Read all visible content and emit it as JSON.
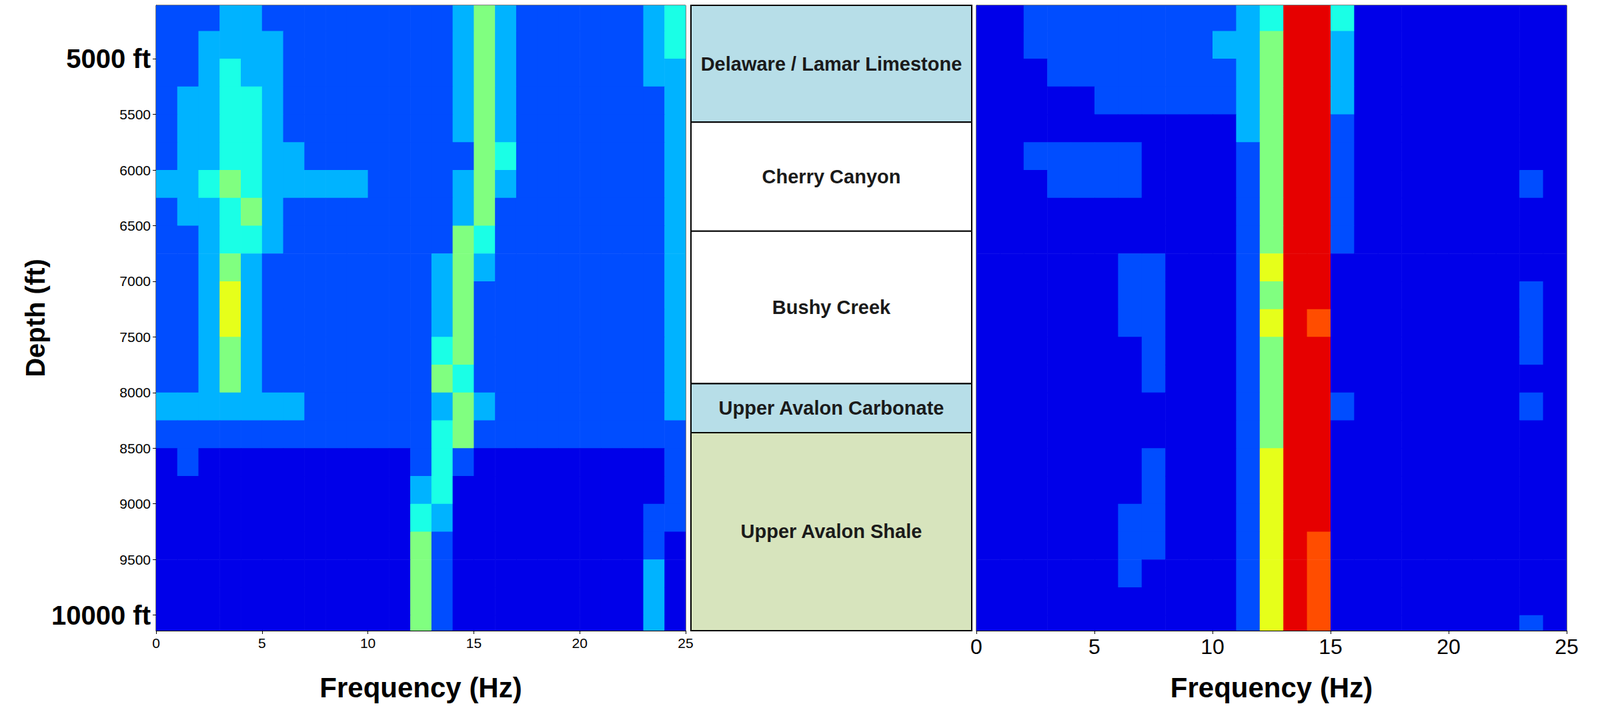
{
  "chart_data": [
    {
      "type": "heatmap",
      "x_label": "Frequency (Hz)",
      "y_label": "Depth (ft)",
      "xlim": [
        0,
        25
      ],
      "xticks": [
        0,
        5,
        10,
        15,
        20,
        25
      ],
      "ylim": [
        4520,
        10140
      ],
      "yticks": [
        {
          "value": 5000,
          "label": "5000 ft"
        },
        5500,
        6000,
        6500,
        7000,
        7500,
        8000,
        8500,
        9000,
        9500,
        {
          "value": 10000,
          "label": "10000 ft"
        }
      ],
      "zlim": [
        0,
        10
      ],
      "x_edges": [
        0,
        1,
        2,
        3,
        4,
        5,
        6,
        7,
        8,
        9,
        10,
        11,
        12,
        13,
        14,
        15,
        16,
        17,
        18,
        19,
        20,
        21,
        22,
        23,
        24,
        25
      ],
      "y_edges": [
        4520,
        4750,
        5000,
        5250,
        5500,
        5750,
        6000,
        6250,
        6500,
        6750,
        7000,
        7250,
        7500,
        7750,
        8000,
        8250,
        8500,
        8750,
        9000,
        9250,
        9500,
        9750,
        10000,
        10140
      ],
      "z": [
        [
          2,
          2,
          2,
          3,
          3,
          2,
          2,
          2,
          2,
          2,
          2,
          2,
          2,
          2,
          3,
          5,
          3,
          2,
          2,
          2,
          2,
          2,
          2,
          3,
          4
        ],
        [
          2,
          2,
          3,
          3,
          3,
          3,
          2,
          2,
          2,
          2,
          2,
          2,
          2,
          2,
          3,
          5,
          3,
          2,
          2,
          2,
          2,
          2,
          2,
          3,
          4
        ],
        [
          2,
          2,
          3,
          4,
          3,
          3,
          2,
          2,
          2,
          2,
          2,
          2,
          2,
          2,
          3,
          5,
          3,
          2,
          2,
          2,
          2,
          2,
          2,
          3,
          3
        ],
        [
          2,
          3,
          3,
          4,
          4,
          3,
          2,
          2,
          2,
          2,
          2,
          2,
          2,
          2,
          3,
          5,
          3,
          2,
          2,
          2,
          2,
          2,
          2,
          2,
          3
        ],
        [
          2,
          3,
          3,
          4,
          4,
          3,
          2,
          2,
          2,
          2,
          2,
          2,
          2,
          2,
          3,
          5,
          3,
          2,
          2,
          2,
          2,
          2,
          2,
          2,
          3
        ],
        [
          2,
          3,
          3,
          4,
          4,
          3,
          3,
          2,
          2,
          2,
          2,
          2,
          2,
          2,
          2,
          5,
          4,
          2,
          2,
          2,
          2,
          2,
          2,
          2,
          3
        ],
        [
          3,
          3,
          4,
          5,
          4,
          3,
          3,
          3,
          3,
          3,
          2,
          2,
          2,
          2,
          3,
          5,
          3,
          2,
          2,
          2,
          2,
          2,
          2,
          2,
          3
        ],
        [
          2,
          3,
          3,
          4,
          5,
          3,
          2,
          2,
          2,
          2,
          2,
          2,
          2,
          2,
          3,
          5,
          2,
          2,
          2,
          2,
          2,
          2,
          2,
          2,
          3
        ],
        [
          2,
          2,
          3,
          4,
          4,
          3,
          2,
          2,
          2,
          2,
          2,
          2,
          2,
          2,
          5,
          4,
          2,
          2,
          2,
          2,
          2,
          2,
          2,
          2,
          3
        ],
        [
          2,
          2,
          3,
          5,
          3,
          2,
          2,
          2,
          2,
          2,
          2,
          2,
          2,
          3,
          5,
          3,
          2,
          2,
          2,
          2,
          2,
          2,
          2,
          2,
          3
        ],
        [
          2,
          2,
          3,
          6,
          3,
          2,
          2,
          2,
          2,
          2,
          2,
          2,
          2,
          3,
          5,
          2,
          2,
          2,
          2,
          2,
          2,
          2,
          2,
          2,
          3
        ],
        [
          2,
          2,
          3,
          6,
          3,
          2,
          2,
          2,
          2,
          2,
          2,
          2,
          2,
          3,
          5,
          2,
          2,
          2,
          2,
          2,
          2,
          2,
          2,
          2,
          3
        ],
        [
          2,
          2,
          3,
          5,
          3,
          2,
          2,
          2,
          2,
          2,
          2,
          2,
          2,
          4,
          5,
          2,
          2,
          2,
          2,
          2,
          2,
          2,
          2,
          2,
          3
        ],
        [
          2,
          2,
          3,
          5,
          3,
          2,
          2,
          2,
          2,
          2,
          2,
          2,
          2,
          5,
          4,
          2,
          2,
          2,
          2,
          2,
          2,
          2,
          2,
          2,
          3
        ],
        [
          3,
          3,
          3,
          3,
          3,
          3,
          3,
          2,
          2,
          2,
          2,
          2,
          2,
          3,
          5,
          3,
          2,
          2,
          2,
          2,
          2,
          2,
          2,
          2,
          3
        ],
        [
          2,
          2,
          2,
          2,
          2,
          2,
          2,
          2,
          2,
          2,
          2,
          2,
          2,
          4,
          5,
          2,
          2,
          2,
          2,
          2,
          2,
          2,
          2,
          2,
          2
        ],
        [
          1,
          2,
          1,
          1,
          1,
          1,
          1,
          1,
          1,
          1,
          1,
          1,
          2,
          4,
          2,
          1,
          1,
          1,
          1,
          1,
          1,
          1,
          1,
          1,
          2
        ],
        [
          1,
          1,
          1,
          1,
          1,
          1,
          1,
          1,
          1,
          1,
          1,
          1,
          3,
          4,
          1,
          1,
          1,
          1,
          1,
          1,
          1,
          1,
          1,
          1,
          2
        ],
        [
          1,
          1,
          1,
          1,
          1,
          1,
          1,
          1,
          1,
          1,
          1,
          1,
          4,
          3,
          1,
          1,
          1,
          1,
          1,
          1,
          1,
          1,
          1,
          2,
          2
        ],
        [
          1,
          1,
          1,
          1,
          1,
          1,
          1,
          1,
          1,
          1,
          1,
          1,
          5,
          2,
          1,
          1,
          1,
          1,
          1,
          1,
          1,
          1,
          1,
          2,
          1
        ],
        [
          1,
          1,
          1,
          1,
          1,
          1,
          1,
          1,
          1,
          1,
          1,
          1,
          5,
          2,
          1,
          1,
          1,
          1,
          1,
          1,
          1,
          1,
          1,
          3,
          1
        ],
        [
          1,
          1,
          1,
          1,
          1,
          1,
          1,
          1,
          1,
          1,
          1,
          1,
          5,
          2,
          1,
          1,
          1,
          1,
          1,
          1,
          1,
          1,
          1,
          3,
          1
        ],
        [
          1,
          1,
          1,
          1,
          1,
          1,
          1,
          1,
          1,
          1,
          1,
          1,
          5,
          2,
          1,
          1,
          1,
          1,
          1,
          1,
          1,
          1,
          1,
          3,
          1
        ]
      ]
    },
    {
      "type": "strata",
      "tick_labels": false,
      "ylim": [
        4520,
        10140
      ],
      "formations": [
        {
          "name": "Delaware / Lamar Limestone",
          "top": 4520,
          "bottom": 5570,
          "color": "#b7dee8"
        },
        {
          "name": "Cherry Canyon",
          "top": 5570,
          "bottom": 6550,
          "color": "#ffffff"
        },
        {
          "name": "Bushy Creek",
          "top": 6550,
          "bottom": 7920,
          "color": "#ffffff"
        },
        {
          "name": "Upper Avalon Carbonate",
          "top": 7920,
          "bottom": 8360,
          "color": "#b7dee8"
        },
        {
          "name": "Upper Avalon Shale",
          "top": 8360,
          "bottom": 10140,
          "color": "#d7e4bd"
        }
      ]
    },
    {
      "type": "heatmap",
      "x_label": "Frequency (Hz)",
      "tick_labels": "x",
      "xlim": [
        0,
        25
      ],
      "xticks": [
        0,
        5,
        10,
        15,
        20,
        25
      ],
      "ylim": [
        4520,
        10140
      ],
      "zlim": [
        0,
        10
      ],
      "x_edges": [
        0,
        1,
        2,
        3,
        4,
        5,
        6,
        7,
        8,
        9,
        10,
        11,
        12,
        13,
        14,
        15,
        16,
        17,
        18,
        19,
        20,
        21,
        22,
        23,
        24,
        25
      ],
      "y_edges": [
        4520,
        4750,
        5000,
        5250,
        5500,
        5750,
        6000,
        6250,
        6500,
        6750,
        7000,
        7250,
        7500,
        7750,
        8000,
        8250,
        8500,
        8750,
        9000,
        9250,
        9500,
        9750,
        10000,
        10140
      ],
      "z": [
        [
          1,
          1,
          2,
          2,
          2,
          2,
          2,
          2,
          2,
          2,
          2,
          3,
          4,
          9,
          9,
          4,
          1,
          1,
          1,
          1,
          1,
          1,
          1,
          1,
          1
        ],
        [
          1,
          1,
          2,
          2,
          2,
          2,
          2,
          2,
          2,
          2,
          3,
          3,
          5,
          9,
          9,
          3,
          1,
          1,
          1,
          1,
          1,
          1,
          1,
          1,
          1
        ],
        [
          1,
          1,
          1,
          2,
          2,
          2,
          2,
          2,
          2,
          2,
          2,
          3,
          5,
          9,
          9,
          3,
          1,
          1,
          1,
          1,
          1,
          1,
          1,
          1,
          1
        ],
        [
          1,
          1,
          1,
          1,
          1,
          2,
          2,
          2,
          2,
          2,
          2,
          3,
          5,
          9,
          9,
          3,
          1,
          1,
          1,
          1,
          1,
          1,
          1,
          1,
          1
        ],
        [
          1,
          1,
          1,
          1,
          1,
          1,
          1,
          1,
          1,
          1,
          1,
          3,
          5,
          9,
          9,
          2,
          1,
          1,
          1,
          1,
          1,
          1,
          1,
          1,
          1
        ],
        [
          1,
          1,
          2,
          2,
          2,
          2,
          2,
          1,
          1,
          1,
          1,
          2,
          5,
          9,
          9,
          2,
          1,
          1,
          1,
          1,
          1,
          1,
          1,
          1,
          1
        ],
        [
          1,
          1,
          1,
          2,
          2,
          2,
          2,
          1,
          1,
          1,
          1,
          2,
          5,
          9,
          9,
          2,
          1,
          1,
          1,
          1,
          1,
          1,
          1,
          2,
          1
        ],
        [
          1,
          1,
          1,
          1,
          1,
          1,
          1,
          1,
          1,
          1,
          1,
          2,
          5,
          9,
          9,
          2,
          1,
          1,
          1,
          1,
          1,
          1,
          1,
          1,
          1
        ],
        [
          1,
          1,
          1,
          1,
          1,
          1,
          1,
          1,
          1,
          1,
          1,
          2,
          5,
          9,
          9,
          2,
          1,
          1,
          1,
          1,
          1,
          1,
          1,
          1,
          1
        ],
        [
          1,
          1,
          1,
          1,
          1,
          1,
          2,
          2,
          1,
          1,
          1,
          2,
          6,
          9,
          9,
          1,
          1,
          1,
          1,
          1,
          1,
          1,
          1,
          1,
          1
        ],
        [
          1,
          1,
          1,
          1,
          1,
          1,
          2,
          2,
          1,
          1,
          1,
          2,
          5,
          9,
          9,
          1,
          1,
          1,
          1,
          1,
          1,
          1,
          1,
          2,
          1
        ],
        [
          1,
          1,
          1,
          1,
          1,
          1,
          2,
          2,
          1,
          1,
          1,
          2,
          6,
          9,
          8,
          1,
          1,
          1,
          1,
          1,
          1,
          1,
          1,
          2,
          1
        ],
        [
          1,
          1,
          1,
          1,
          1,
          1,
          1,
          2,
          1,
          1,
          1,
          2,
          5,
          9,
          9,
          1,
          1,
          1,
          1,
          1,
          1,
          1,
          1,
          2,
          1
        ],
        [
          1,
          1,
          1,
          1,
          1,
          1,
          1,
          2,
          1,
          1,
          1,
          2,
          5,
          9,
          9,
          1,
          1,
          1,
          1,
          1,
          1,
          1,
          1,
          1,
          1
        ],
        [
          1,
          1,
          1,
          1,
          1,
          1,
          1,
          1,
          1,
          1,
          1,
          2,
          5,
          9,
          9,
          2,
          1,
          1,
          1,
          1,
          1,
          1,
          1,
          2,
          1
        ],
        [
          1,
          1,
          1,
          1,
          1,
          1,
          1,
          1,
          1,
          1,
          1,
          2,
          5,
          9,
          9,
          1,
          1,
          1,
          1,
          1,
          1,
          1,
          1,
          1,
          1
        ],
        [
          1,
          1,
          1,
          1,
          1,
          1,
          1,
          2,
          1,
          1,
          1,
          2,
          6,
          9,
          9,
          1,
          1,
          1,
          1,
          1,
          1,
          1,
          1,
          1,
          1
        ],
        [
          1,
          1,
          1,
          1,
          1,
          1,
          1,
          2,
          1,
          1,
          1,
          2,
          6,
          9,
          9,
          1,
          1,
          1,
          1,
          1,
          1,
          1,
          1,
          1,
          1
        ],
        [
          1,
          1,
          1,
          1,
          1,
          1,
          2,
          2,
          1,
          1,
          1,
          2,
          6,
          9,
          9,
          1,
          1,
          1,
          1,
          1,
          1,
          1,
          1,
          1,
          1
        ],
        [
          1,
          1,
          1,
          1,
          1,
          1,
          2,
          2,
          1,
          1,
          1,
          2,
          6,
          9,
          8,
          1,
          1,
          1,
          1,
          1,
          1,
          1,
          1,
          1,
          1
        ],
        [
          1,
          1,
          1,
          1,
          1,
          1,
          2,
          1,
          1,
          1,
          1,
          2,
          6,
          9,
          8,
          1,
          1,
          1,
          1,
          1,
          1,
          1,
          1,
          1,
          1
        ],
        [
          1,
          1,
          1,
          1,
          1,
          1,
          1,
          1,
          1,
          1,
          1,
          2,
          6,
          9,
          8,
          1,
          1,
          1,
          1,
          1,
          1,
          1,
          1,
          1,
          1
        ],
        [
          1,
          1,
          1,
          1,
          1,
          1,
          1,
          1,
          1,
          1,
          1,
          2,
          6,
          9,
          8,
          1,
          1,
          1,
          1,
          1,
          1,
          1,
          1,
          2,
          1
        ]
      ]
    }
  ]
}
